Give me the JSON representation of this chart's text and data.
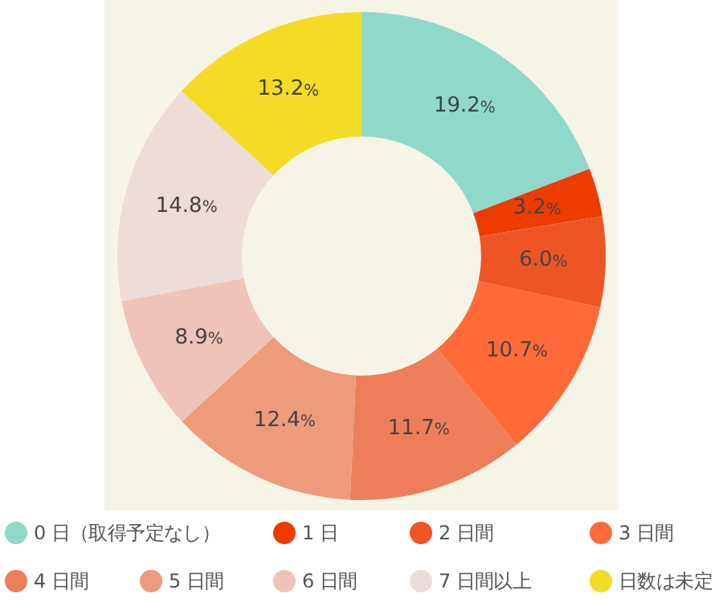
{
  "chart_data": {
    "type": "donut",
    "categories": [
      "0 日（取得予定なし）",
      "1 日",
      "2 日間",
      "3 日間",
      "4 日間",
      "5 日間",
      "6 日間",
      "7 日間以上",
      "日数は未定"
    ],
    "values": [
      19.2,
      3.2,
      6.0,
      10.7,
      11.7,
      12.4,
      8.9,
      14.8,
      13.2
    ],
    "colors": [
      "#8fd9cb",
      "#ee3c00",
      "#ed5624",
      "#ff6a38",
      "#ee7e59",
      "#ee9a7d",
      "#efc3b6",
      "#eddcd7",
      "#f4db26"
    ],
    "value_labels": [
      "19.2%",
      "3.2%",
      "6.0%",
      "10.7%",
      "11.7%",
      "12.4%",
      "8.9%",
      "14.8%",
      "13.2%"
    ],
    "legend": "bottom"
  }
}
